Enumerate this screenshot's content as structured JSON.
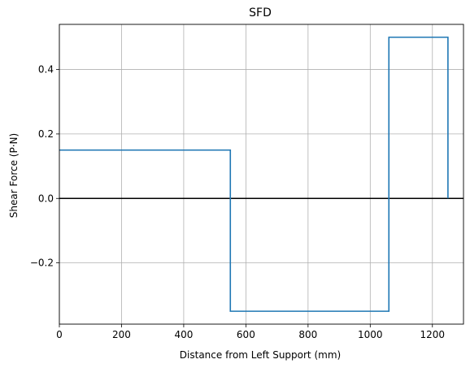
{
  "chart_data": {
    "type": "line",
    "title": "SFD",
    "xlabel": "Distance from Left Support (mm)",
    "ylabel": "Shear Force (P·N)",
    "xlim": [
      0,
      1300
    ],
    "ylim": [
      -0.39,
      0.54
    ],
    "x_ticks": [
      0,
      200,
      400,
      600,
      800,
      1000,
      1200
    ],
    "x_tick_labels": [
      "0",
      "200",
      "400",
      "600",
      "800",
      "1000",
      "1200"
    ],
    "y_ticks": [
      -0.2,
      0.0,
      0.2,
      0.4
    ],
    "y_tick_labels": [
      "−0.2",
      "0.0",
      "0.2",
      "0.4"
    ],
    "grid": true,
    "series": [
      {
        "color": "#1f77b4",
        "x": [
          0,
          550,
          550,
          1060,
          1060,
          1250,
          1250
        ],
        "y": [
          0.15,
          0.15,
          -0.35,
          -0.35,
          0.5,
          0.5,
          0.0
        ]
      }
    ],
    "reference_line": {
      "y": 0.0,
      "color": "#000000"
    }
  }
}
